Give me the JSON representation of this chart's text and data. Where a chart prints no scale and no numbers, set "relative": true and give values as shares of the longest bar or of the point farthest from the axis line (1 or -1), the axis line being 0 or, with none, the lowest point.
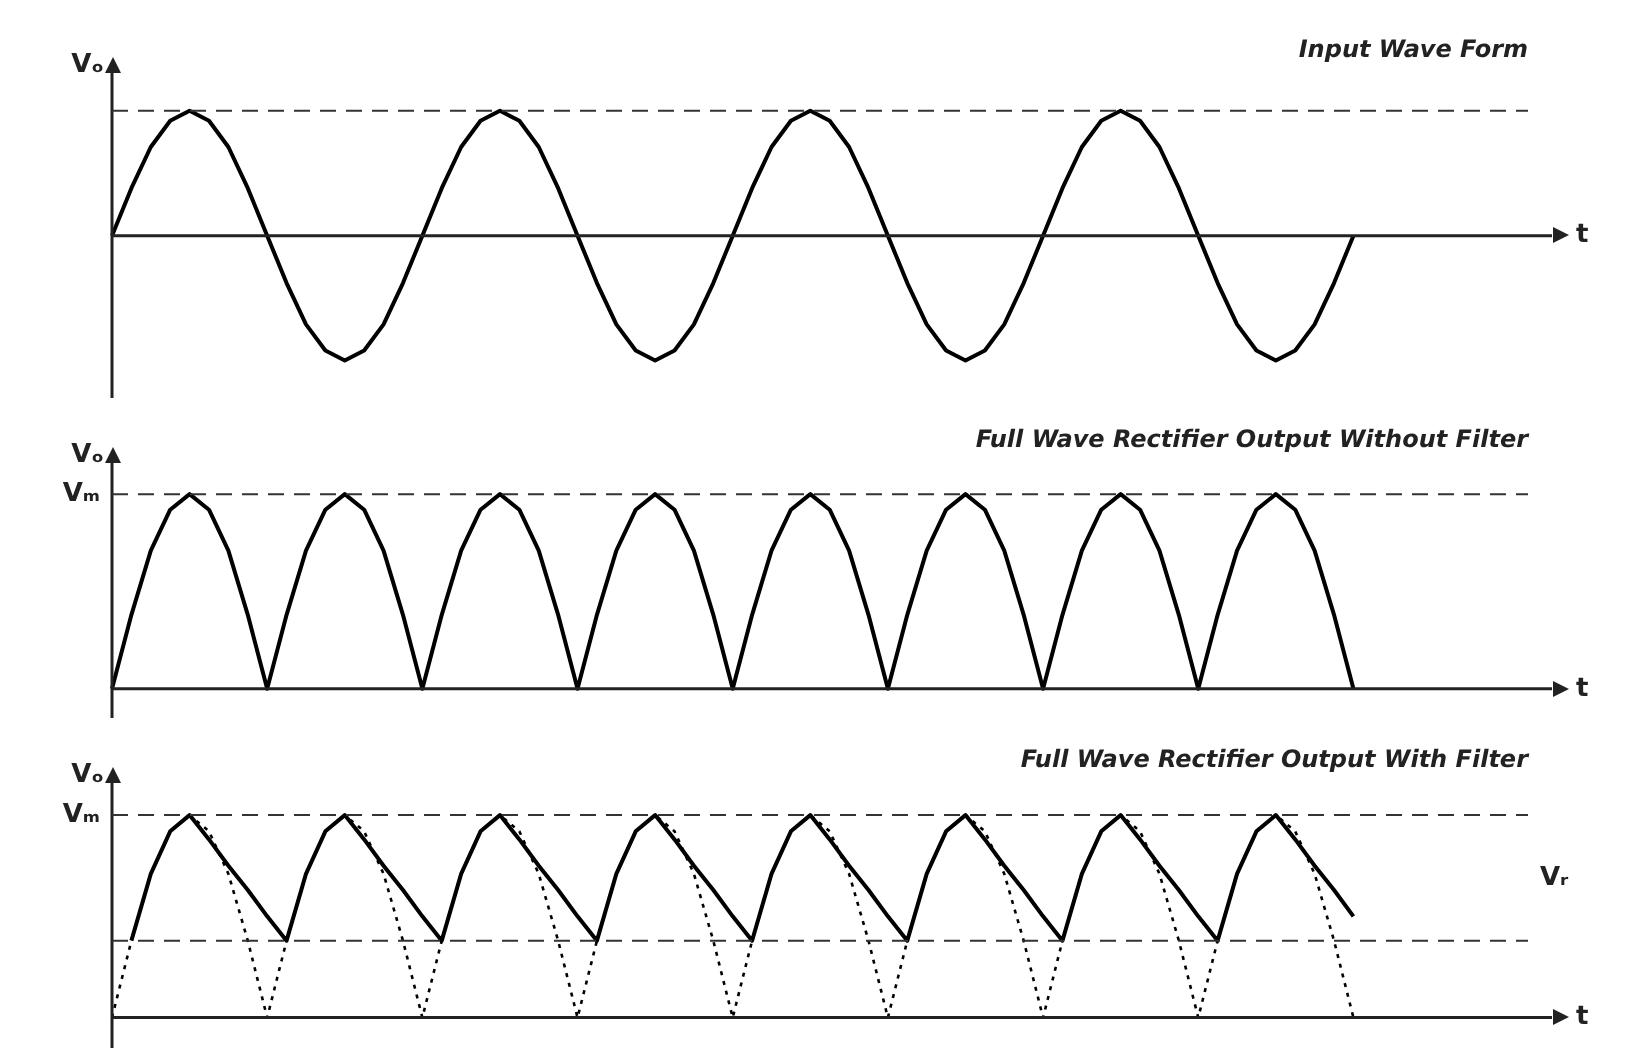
{
  "chart_data": [
    {
      "type": "line",
      "title": "Input Wave Form",
      "xlabel": "t",
      "ylabel": "Vₒ",
      "relative": true,
      "legend": false,
      "marker": "none",
      "categories": [
        null,
        null,
        null,
        null,
        null,
        null,
        null,
        null,
        null,
        null,
        null,
        null,
        null,
        null,
        null,
        null,
        null,
        null,
        null,
        null,
        null,
        null,
        null,
        null,
        null,
        null,
        null,
        null,
        null,
        null,
        null,
        null,
        null,
        null,
        null,
        null,
        null,
        null,
        null,
        null,
        null,
        null,
        null,
        null,
        null,
        null,
        null,
        null,
        null,
        null,
        null,
        null,
        null,
        null,
        null,
        null,
        null,
        null,
        null,
        null,
        null,
        null,
        null,
        null,
        null,
        null,
        null,
        null,
        null,
        null,
        null,
        null,
        null,
        null
      ],
      "series": [
        {
          "color": "#000000",
          "line_style": "solid",
          "values": [
            0,
            0.38,
            0.71,
            0.92,
            1,
            0.92,
            0.71,
            0.38,
            0,
            -0.38,
            -0.71,
            -0.92,
            -1,
            -0.92,
            -0.71,
            -0.38,
            0,
            0.38,
            0.71,
            0.92,
            1,
            0.92,
            0.71,
            0.38,
            0,
            -0.38,
            -0.71,
            -0.92,
            -1,
            -0.92,
            -0.71,
            -0.38,
            0,
            0.38,
            0.71,
            0.92,
            1,
            0.92,
            0.71,
            0.38,
            0,
            -0.38,
            -0.71,
            -0.92,
            -1,
            -0.92,
            -0.71,
            -0.38,
            0,
            0.38,
            0.71,
            0.92,
            1,
            0.92,
            0.71,
            0.38,
            0,
            -0.38,
            -0.71,
            -0.92,
            -1,
            -0.92,
            -0.71,
            -0.38,
            0,
            null,
            null,
            null,
            null,
            null,
            null,
            null,
            null,
            null
          ]
        }
      ],
      "ref_lines": [
        {
          "axis": "y",
          "value": 1,
          "line_style": "dashed"
        }
      ]
    },
    {
      "type": "line",
      "title": "Full Wave Rectifier Output Without Filter",
      "xlabel": "t",
      "ylabel": "Vₒ",
      "relative": true,
      "legend": false,
      "marker": "none",
      "categories": [
        null,
        null,
        null,
        null,
        null,
        null,
        null,
        null,
        null,
        null,
        null,
        null,
        null,
        null,
        null,
        null,
        null,
        null,
        null,
        null,
        null,
        null,
        null,
        null,
        null,
        null,
        null,
        null,
        null,
        null,
        null,
        null,
        null,
        null,
        null,
        null,
        null,
        null,
        null,
        null,
        null,
        null,
        null,
        null,
        null,
        null,
        null,
        null,
        null,
        null,
        null,
        null,
        null,
        null,
        null,
        null,
        null,
        null,
        null,
        null,
        null,
        null,
        null,
        null,
        null,
        null,
        null,
        null,
        null,
        null,
        null,
        null,
        null,
        null
      ],
      "series": [
        {
          "color": "#000000",
          "line_style": "solid",
          "values": [
            0,
            0.38,
            0.71,
            0.92,
            1,
            0.92,
            0.71,
            0.38,
            0,
            0.38,
            0.71,
            0.92,
            1,
            0.92,
            0.71,
            0.38,
            0,
            0.38,
            0.71,
            0.92,
            1,
            0.92,
            0.71,
            0.38,
            0,
            0.38,
            0.71,
            0.92,
            1,
            0.92,
            0.71,
            0.38,
            0,
            0.38,
            0.71,
            0.92,
            1,
            0.92,
            0.71,
            0.38,
            0,
            0.38,
            0.71,
            0.92,
            1,
            0.92,
            0.71,
            0.38,
            0,
            0.38,
            0.71,
            0.92,
            1,
            0.92,
            0.71,
            0.38,
            0,
            0.38,
            0.71,
            0.92,
            1,
            0.92,
            0.71,
            0.38,
            0,
            null,
            null,
            null,
            null,
            null,
            null,
            null,
            null,
            null
          ]
        }
      ],
      "ref_lines": [
        {
          "axis": "y",
          "value": 1,
          "label": "Vₘ",
          "line_style": "dashed"
        }
      ]
    },
    {
      "type": "line",
      "title": "Full Wave Rectifier Output With Filter",
      "xlabel": "t",
      "ylabel": "Vₒ",
      "relative": true,
      "legend": false,
      "marker": "none",
      "categories": [
        null,
        null,
        null,
        null,
        null,
        null,
        null,
        null,
        null,
        null,
        null,
        null,
        null,
        null,
        null,
        null,
        null,
        null,
        null,
        null,
        null,
        null,
        null,
        null,
        null,
        null,
        null,
        null,
        null,
        null,
        null,
        null,
        null,
        null,
        null,
        null,
        null,
        null,
        null,
        null,
        null,
        null,
        null,
        null,
        null,
        null,
        null,
        null,
        null,
        null,
        null,
        null,
        null,
        null,
        null,
        null,
        null,
        null,
        null,
        null,
        null,
        null,
        null,
        null,
        null,
        null,
        null,
        null,
        null,
        null,
        null,
        null,
        null,
        null
      ],
      "series": [
        {
          "color": "#000000",
          "line_style": "dotted",
          "values": [
            0,
            0.38,
            0.71,
            0.92,
            1,
            0.92,
            0.71,
            0.38,
            0,
            0.38,
            0.71,
            0.92,
            1,
            0.92,
            0.71,
            0.38,
            0,
            0.38,
            0.71,
            0.92,
            1,
            0.92,
            0.71,
            0.38,
            0,
            0.38,
            0.71,
            0.92,
            1,
            0.92,
            0.71,
            0.38,
            0,
            0.38,
            0.71,
            0.92,
            1,
            0.92,
            0.71,
            0.38,
            0,
            0.38,
            0.71,
            0.92,
            1,
            0.92,
            0.71,
            0.38,
            0,
            0.38,
            0.71,
            0.92,
            1,
            0.92,
            0.71,
            0.38,
            0,
            0.38,
            0.71,
            0.92,
            1,
            0.92,
            0.71,
            0.38,
            0,
            null,
            null,
            null,
            null,
            null,
            null,
            null,
            null,
            null
          ]
        },
        {
          "color": "#000000",
          "line_style": "solid",
          "values": [
            null,
            0.38,
            0.71,
            0.92,
            1,
            0.88,
            0.75,
            0.63,
            0.5,
            0.38,
            0.71,
            0.92,
            1,
            0.88,
            0.75,
            0.63,
            0.5,
            0.38,
            0.71,
            0.92,
            1,
            0.88,
            0.75,
            0.63,
            0.5,
            0.38,
            0.71,
            0.92,
            1,
            0.88,
            0.75,
            0.63,
            0.5,
            0.38,
            0.71,
            0.92,
            1,
            0.88,
            0.75,
            0.63,
            0.5,
            0.38,
            0.71,
            0.92,
            1,
            0.88,
            0.75,
            0.63,
            0.5,
            0.38,
            0.71,
            0.92,
            1,
            0.88,
            0.75,
            0.63,
            0.5,
            0.38,
            0.71,
            0.92,
            1,
            0.88,
            0.75,
            0.63,
            0.5,
            null,
            null,
            null,
            null,
            null,
            null,
            null,
            null,
            null
          ]
        }
      ],
      "ref_lines": [
        {
          "axis": "y",
          "value": 1,
          "label": "Vₘ",
          "line_style": "dashed"
        },
        {
          "axis": "y",
          "value": 0.38,
          "line_style": "dashed"
        }
      ],
      "annotations": [
        "Vᵣ"
      ]
    }
  ]
}
